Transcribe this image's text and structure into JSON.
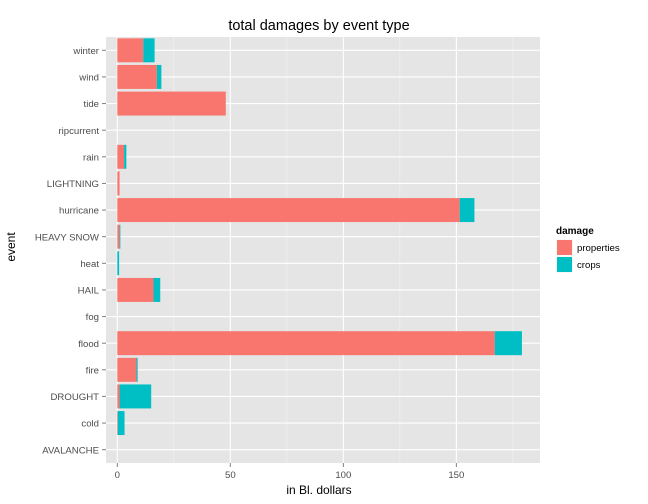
{
  "chart_data": {
    "type": "bar",
    "orientation": "horizontal",
    "stacked": true,
    "title": "total damages by event type",
    "xlabel": "in Bl. dollars",
    "ylabel": "event",
    "xlim": [
      -5,
      187
    ],
    "xticks": [
      0,
      50,
      100,
      150
    ],
    "grid": true,
    "legend_position": "right",
    "legend_title": "damage",
    "categories": [
      "AVALANCHE",
      "cold",
      "DROUGHT",
      "fire",
      "flood",
      "fog",
      "HAIL",
      "heat",
      "HEAVY SNOW",
      "hurricane",
      "LIGHTNING",
      "rain",
      "ripcurrent",
      "tide",
      "wind",
      "winter"
    ],
    "series": [
      {
        "name": "properties",
        "color": "#F8766D",
        "values": [
          0.0,
          0.2,
          1.0,
          8.5,
          167.0,
          0.0,
          16.0,
          0.0,
          1.0,
          151.5,
          1.0,
          3.0,
          0.0,
          48.0,
          17.5,
          11.5
        ]
      },
      {
        "name": "crops",
        "color": "#00BFC4",
        "values": [
          0.0,
          3.0,
          14.0,
          0.5,
          12.0,
          0.0,
          3.0,
          0.8,
          0.1,
          6.5,
          0.0,
          1.0,
          0.0,
          0.0,
          2.0,
          5.0
        ]
      }
    ]
  }
}
